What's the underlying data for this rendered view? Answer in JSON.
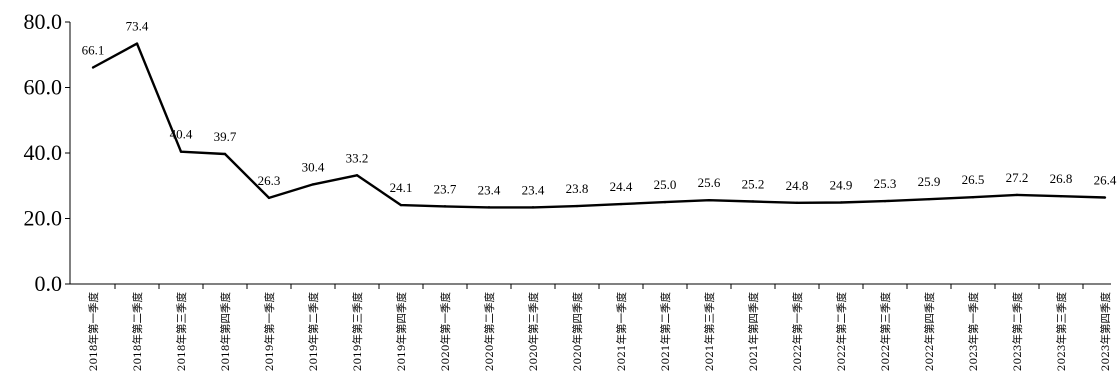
{
  "chart_data": {
    "type": "line",
    "title": "",
    "xlabel": "",
    "ylabel": "",
    "ylim": [
      0,
      80
    ],
    "y_ticks": [
      "0.0",
      "20.0",
      "40.0",
      "60.0",
      "80.0"
    ],
    "grid": false,
    "legend": "none",
    "categories": [
      "2018年第一季度",
      "2018年第二季度",
      "2018年第三季度",
      "2018年第四季度",
      "2019年第一季度",
      "2019年第二季度",
      "2019年第三季度",
      "2019年第四季度",
      "2020年第一季度",
      "2020年第二季度",
      "2020年第三季度",
      "2020年第四季度",
      "2021年第一季度",
      "2021年第二季度",
      "2021年第三季度",
      "2021年第四季度",
      "2022年第一季度",
      "2022年第二季度",
      "2022年第三季度",
      "2022年第四季度",
      "2023年第一季度",
      "2023年第二季度",
      "2023年第三季度",
      "2023年第四季度"
    ],
    "series": [
      {
        "values": [
          66.1,
          73.4,
          40.4,
          39.7,
          26.3,
          30.4,
          33.2,
          24.1,
          23.7,
          23.4,
          23.4,
          23.8,
          24.4,
          25.0,
          25.6,
          25.2,
          24.8,
          24.9,
          25.3,
          25.9,
          26.5,
          27.2,
          26.8,
          26.4
        ],
        "labels": [
          "66.1",
          "73.4",
          "40.4",
          "39.7",
          "26.3",
          "30.4",
          "33.2",
          "24.1",
          "23.7",
          "23.4",
          "23.4",
          "23.8",
          "24.4",
          "25.0",
          "25.6",
          "25.2",
          "24.8",
          "24.9",
          "25.3",
          "25.9",
          "26.5",
          "27.2",
          "26.8",
          "26.4"
        ],
        "color": "#000000"
      }
    ]
  }
}
